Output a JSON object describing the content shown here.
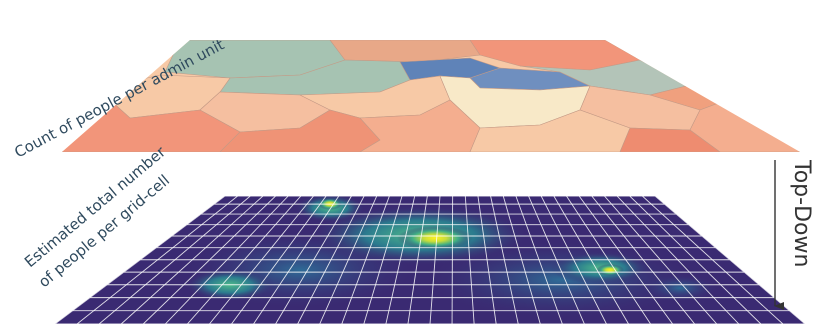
{
  "top_layer": {
    "label": "Count of people per admin unit"
  },
  "bottom_layer": {
    "label_line1": "Estimated total number",
    "label_line2": "of people per grid-cell"
  },
  "arrow": {
    "label": "Top-Down"
  },
  "colors": {
    "admin_low": "#f2957a",
    "admin_peach": "#f7c9a6",
    "admin_cream": "#f8e9c8",
    "admin_sage": "#a6c3b2",
    "admin_blue": "#5f83b8",
    "grid_base": "#3a2a72",
    "grid_hot": "#f5e626",
    "grid_lines": "#ffffff",
    "label_text": "#2f4a5e"
  }
}
